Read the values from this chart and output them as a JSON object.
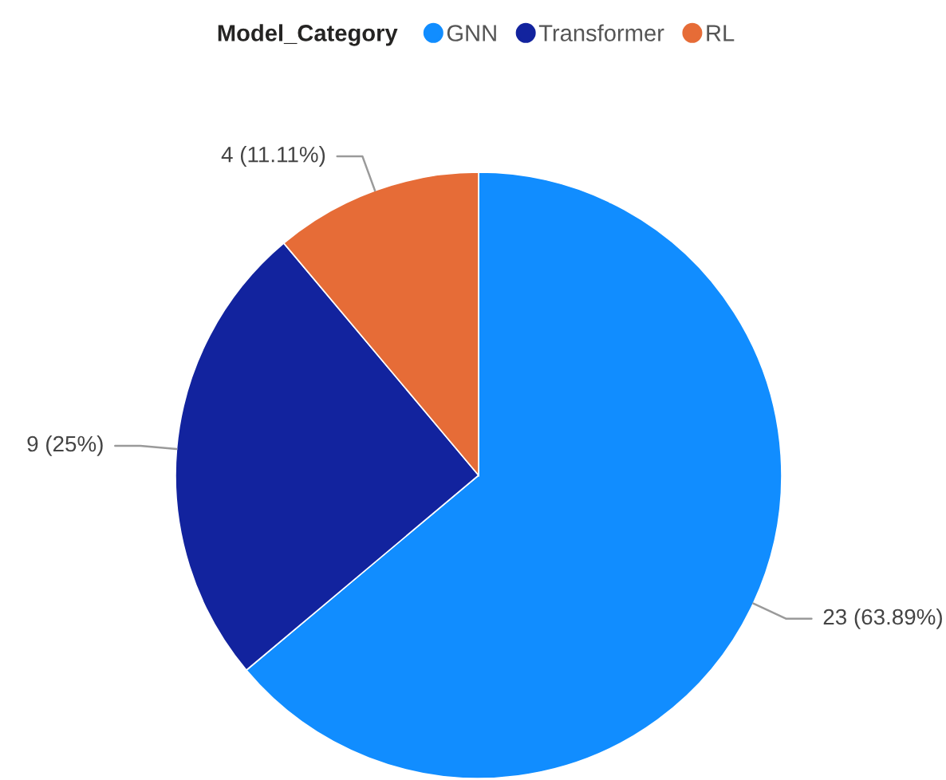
{
  "chart_data": {
    "type": "pie",
    "legend_title": "Model_Category",
    "legend": "top",
    "categories": [
      "GNN",
      "Transformer",
      "RL"
    ],
    "values": [
      23,
      9,
      4
    ],
    "colors": [
      "#118dff",
      "#12239e",
      "#e66c37"
    ],
    "value_labels": [
      "23 (63.89%)",
      "9 (25%)",
      "4 (11.11%)"
    ]
  }
}
